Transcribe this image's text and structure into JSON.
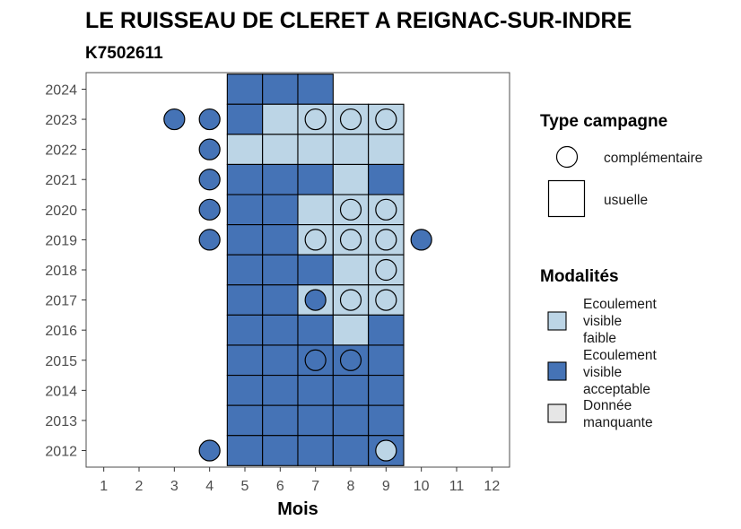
{
  "chart_data": {
    "type": "heatmap",
    "title": "LE RUISSEAU DE CLERET A REIGNAC-SUR-INDRE",
    "subtitle": "K7502611",
    "xlabel": "Mois",
    "ylabel": "",
    "x_ticks": [
      1,
      2,
      3,
      4,
      5,
      6,
      7,
      8,
      9,
      10,
      11,
      12
    ],
    "y_ticks": [
      2012,
      2013,
      2014,
      2015,
      2016,
      2017,
      2018,
      2019,
      2020,
      2021,
      2022,
      2023,
      2024
    ],
    "xlim": [
      0.5,
      12.5
    ],
    "ylim": [
      2011.45,
      2024.55
    ],
    "grid": false,
    "colors": {
      "faible": "#bcd5e6",
      "acceptable": "#4573b6",
      "manquante": "#e6e6e6"
    },
    "usuelle": [
      {
        "year": 2024,
        "month": 5,
        "modalite": "acceptable"
      },
      {
        "year": 2024,
        "month": 6,
        "modalite": "acceptable"
      },
      {
        "year": 2024,
        "month": 7,
        "modalite": "acceptable"
      },
      {
        "year": 2023,
        "month": 5,
        "modalite": "acceptable"
      },
      {
        "year": 2023,
        "month": 6,
        "modalite": "faible"
      },
      {
        "year": 2023,
        "month": 7,
        "modalite": "faible"
      },
      {
        "year": 2023,
        "month": 8,
        "modalite": "faible"
      },
      {
        "year": 2023,
        "month": 9,
        "modalite": "faible"
      },
      {
        "year": 2022,
        "month": 5,
        "modalite": "faible"
      },
      {
        "year": 2022,
        "month": 6,
        "modalite": "faible"
      },
      {
        "year": 2022,
        "month": 7,
        "modalite": "faible"
      },
      {
        "year": 2022,
        "month": 8,
        "modalite": "faible"
      },
      {
        "year": 2022,
        "month": 9,
        "modalite": "faible"
      },
      {
        "year": 2021,
        "month": 5,
        "modalite": "acceptable"
      },
      {
        "year": 2021,
        "month": 6,
        "modalite": "acceptable"
      },
      {
        "year": 2021,
        "month": 7,
        "modalite": "acceptable"
      },
      {
        "year": 2021,
        "month": 8,
        "modalite": "faible"
      },
      {
        "year": 2021,
        "month": 9,
        "modalite": "acceptable"
      },
      {
        "year": 2020,
        "month": 5,
        "modalite": "acceptable"
      },
      {
        "year": 2020,
        "month": 6,
        "modalite": "acceptable"
      },
      {
        "year": 2020,
        "month": 7,
        "modalite": "faible"
      },
      {
        "year": 2020,
        "month": 8,
        "modalite": "faible"
      },
      {
        "year": 2020,
        "month": 9,
        "modalite": "faible"
      },
      {
        "year": 2019,
        "month": 5,
        "modalite": "acceptable"
      },
      {
        "year": 2019,
        "month": 6,
        "modalite": "acceptable"
      },
      {
        "year": 2019,
        "month": 7,
        "modalite": "faible"
      },
      {
        "year": 2019,
        "month": 8,
        "modalite": "faible"
      },
      {
        "year": 2019,
        "month": 9,
        "modalite": "faible"
      },
      {
        "year": 2018,
        "month": 5,
        "modalite": "acceptable"
      },
      {
        "year": 2018,
        "month": 6,
        "modalite": "acceptable"
      },
      {
        "year": 2018,
        "month": 7,
        "modalite": "acceptable"
      },
      {
        "year": 2018,
        "month": 8,
        "modalite": "faible"
      },
      {
        "year": 2018,
        "month": 9,
        "modalite": "faible"
      },
      {
        "year": 2017,
        "month": 5,
        "modalite": "acceptable"
      },
      {
        "year": 2017,
        "month": 6,
        "modalite": "acceptable"
      },
      {
        "year": 2017,
        "month": 7,
        "modalite": "faible"
      },
      {
        "year": 2017,
        "month": 8,
        "modalite": "faible"
      },
      {
        "year": 2017,
        "month": 9,
        "modalite": "faible"
      },
      {
        "year": 2016,
        "month": 5,
        "modalite": "acceptable"
      },
      {
        "year": 2016,
        "month": 6,
        "modalite": "acceptable"
      },
      {
        "year": 2016,
        "month": 7,
        "modalite": "acceptable"
      },
      {
        "year": 2016,
        "month": 8,
        "modalite": "faible"
      },
      {
        "year": 2016,
        "month": 9,
        "modalite": "acceptable"
      },
      {
        "year": 2015,
        "month": 5,
        "modalite": "acceptable"
      },
      {
        "year": 2015,
        "month": 6,
        "modalite": "acceptable"
      },
      {
        "year": 2015,
        "month": 7,
        "modalite": "acceptable"
      },
      {
        "year": 2015,
        "month": 8,
        "modalite": "acceptable"
      },
      {
        "year": 2015,
        "month": 9,
        "modalite": "acceptable"
      },
      {
        "year": 2014,
        "month": 5,
        "modalite": "acceptable"
      },
      {
        "year": 2014,
        "month": 6,
        "modalite": "acceptable"
      },
      {
        "year": 2014,
        "month": 7,
        "modalite": "acceptable"
      },
      {
        "year": 2014,
        "month": 8,
        "modalite": "acceptable"
      },
      {
        "year": 2014,
        "month": 9,
        "modalite": "acceptable"
      },
      {
        "year": 2013,
        "month": 5,
        "modalite": "acceptable"
      },
      {
        "year": 2013,
        "month": 6,
        "modalite": "acceptable"
      },
      {
        "year": 2013,
        "month": 7,
        "modalite": "acceptable"
      },
      {
        "year": 2013,
        "month": 8,
        "modalite": "acceptable"
      },
      {
        "year": 2013,
        "month": 9,
        "modalite": "acceptable"
      },
      {
        "year": 2012,
        "month": 5,
        "modalite": "acceptable"
      },
      {
        "year": 2012,
        "month": 6,
        "modalite": "acceptable"
      },
      {
        "year": 2012,
        "month": 7,
        "modalite": "acceptable"
      },
      {
        "year": 2012,
        "month": 8,
        "modalite": "acceptable"
      },
      {
        "year": 2012,
        "month": 9,
        "modalite": "acceptable"
      }
    ],
    "complementaire": [
      {
        "year": 2023,
        "month": 3,
        "modalite": "acceptable"
      },
      {
        "year": 2023,
        "month": 4,
        "modalite": "acceptable"
      },
      {
        "year": 2023,
        "month": 7,
        "modalite": "faible"
      },
      {
        "year": 2023,
        "month": 8,
        "modalite": "faible"
      },
      {
        "year": 2023,
        "month": 9,
        "modalite": "faible"
      },
      {
        "year": 2022,
        "month": 4,
        "modalite": "acceptable"
      },
      {
        "year": 2021,
        "month": 4,
        "modalite": "acceptable"
      },
      {
        "year": 2020,
        "month": 4,
        "modalite": "acceptable"
      },
      {
        "year": 2020,
        "month": 8,
        "modalite": "faible"
      },
      {
        "year": 2020,
        "month": 9,
        "modalite": "faible"
      },
      {
        "year": 2019,
        "month": 4,
        "modalite": "acceptable"
      },
      {
        "year": 2019,
        "month": 7,
        "modalite": "faible"
      },
      {
        "year": 2019,
        "month": 8,
        "modalite": "faible"
      },
      {
        "year": 2019,
        "month": 9,
        "modalite": "faible"
      },
      {
        "year": 2019,
        "month": 10,
        "modalite": "acceptable"
      },
      {
        "year": 2018,
        "month": 9,
        "modalite": "faible"
      },
      {
        "year": 2017,
        "month": 7,
        "modalite": "acceptable"
      },
      {
        "year": 2017,
        "month": 8,
        "modalite": "faible"
      },
      {
        "year": 2017,
        "month": 9,
        "modalite": "faible"
      },
      {
        "year": 2015,
        "month": 7,
        "modalite": "acceptable"
      },
      {
        "year": 2015,
        "month": 8,
        "modalite": "acceptable"
      },
      {
        "year": 2012,
        "month": 4,
        "modalite": "acceptable"
      },
      {
        "year": 2012,
        "month": 9,
        "modalite": "faible"
      }
    ],
    "legend": {
      "position": "right",
      "type_title": "Type campagne",
      "type_items": [
        {
          "shape": "circle",
          "label": "complémentaire"
        },
        {
          "shape": "square",
          "label": "usuelle"
        }
      ],
      "modalites_title": "Modalités",
      "modalites_items": [
        {
          "key": "faible",
          "lines": [
            "Ecoulement",
            "visible",
            "faible"
          ]
        },
        {
          "key": "acceptable",
          "lines": [
            "Ecoulement",
            "visible",
            "acceptable"
          ]
        },
        {
          "key": "manquante",
          "lines": [
            "Donnée",
            "manquante"
          ]
        }
      ]
    }
  }
}
